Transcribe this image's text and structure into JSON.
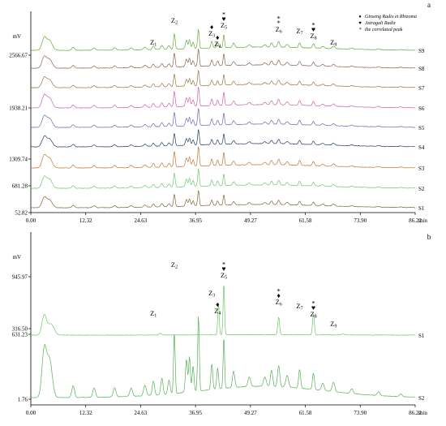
{
  "chart_data": [
    {
      "type": "line",
      "panel_label": "a",
      "ylabel": "mV",
      "xlabel": "min",
      "x_ticks": [
        "0.00",
        "12.32",
        "24.63",
        "36.95",
        "49.27",
        "61.58",
        "73.90",
        "86.22"
      ],
      "y_ticks": [
        "2566.67",
        "1938.21",
        "1309.74",
        "681.28",
        "52.82"
      ],
      "xlim": [
        0,
        86.22
      ],
      "ylim": [
        52.82,
        3000
      ],
      "series": [
        {
          "name": "S1",
          "color": "#7a6a3a"
        },
        {
          "name": "S2",
          "color": "#6fc86f"
        },
        {
          "name": "S3",
          "color": "#c07838"
        },
        {
          "name": "S4",
          "color": "#263e66"
        },
        {
          "name": "S5",
          "color": "#6a6ab4"
        },
        {
          "name": "S6",
          "color": "#cc66aa"
        },
        {
          "name": "S7",
          "color": "#9a7844"
        },
        {
          "name": "S8",
          "color": "#8c6450"
        },
        {
          "name": "S9",
          "color": "#66aa3a"
        }
      ],
      "peaks": [
        {
          "label": "Z",
          "sub": "1",
          "rt": 27.5,
          "markers": ""
        },
        {
          "label": "Z",
          "sub": "2",
          "rt": 32.2,
          "markers": ""
        },
        {
          "label": "Z",
          "sub": "3",
          "rt": 40.6,
          "markers": "♦"
        },
        {
          "label": "Z",
          "sub": "4",
          "rt": 41.9,
          "markers": "♦"
        },
        {
          "label": "Z",
          "sub": "5",
          "rt": 43.3,
          "markers": "*♥"
        },
        {
          "label": "Z",
          "sub": "6",
          "rt": 55.6,
          "markers": "**"
        },
        {
          "label": "Z",
          "sub": "7",
          "rt": 60.3,
          "markers": ""
        },
        {
          "label": "Z",
          "sub": "8",
          "rt": 63.4,
          "markers": "*♥"
        },
        {
          "label": "Z",
          "sub": "9",
          "rt": 67.9,
          "markers": ""
        }
      ],
      "legend": [
        {
          "symbol": "♦",
          "text": "Ginseng Radix et Rhizoma"
        },
        {
          "symbol": "♥",
          "text": "Astragali Radix"
        },
        {
          "symbol": "*",
          "text": "the correlated peak"
        }
      ]
    },
    {
      "type": "line",
      "panel_label": "b",
      "ylabel": "mV",
      "xlabel": "min",
      "x_ticks": [
        "0.00",
        "12.32",
        "24.63",
        "36.95",
        "49.27",
        "61.58",
        "73.90",
        "86.22"
      ],
      "y_ticks": [
        "945.97",
        "631.23",
        "316.50",
        "1.76"
      ],
      "xlim": [
        0,
        86.22
      ],
      "ylim": [
        1.76,
        1150
      ],
      "series": [
        {
          "name": "S2",
          "color": "#58b058"
        },
        {
          "name": "S1",
          "color": "#6cc86c"
        }
      ],
      "peaks": [
        {
          "label": "Z",
          "sub": "1",
          "rt": 27.5,
          "markers": ""
        },
        {
          "label": "Z",
          "sub": "2",
          "rt": 32.2,
          "markers": ""
        },
        {
          "label": "Z",
          "sub": "3",
          "rt": 40.6,
          "markers": ""
        },
        {
          "label": "Z",
          "sub": "4",
          "rt": 41.9,
          "markers": "♦"
        },
        {
          "label": "Z",
          "sub": "5",
          "rt": 43.3,
          "markers": "*♥"
        },
        {
          "label": "Z",
          "sub": "6",
          "rt": 55.6,
          "markers": "*♦"
        },
        {
          "label": "Z",
          "sub": "7",
          "rt": 60.3,
          "markers": ""
        },
        {
          "label": "Z",
          "sub": "8",
          "rt": 63.4,
          "markers": "*♥"
        },
        {
          "label": "Z",
          "sub": "9",
          "rt": 67.9,
          "markers": ""
        }
      ]
    }
  ]
}
